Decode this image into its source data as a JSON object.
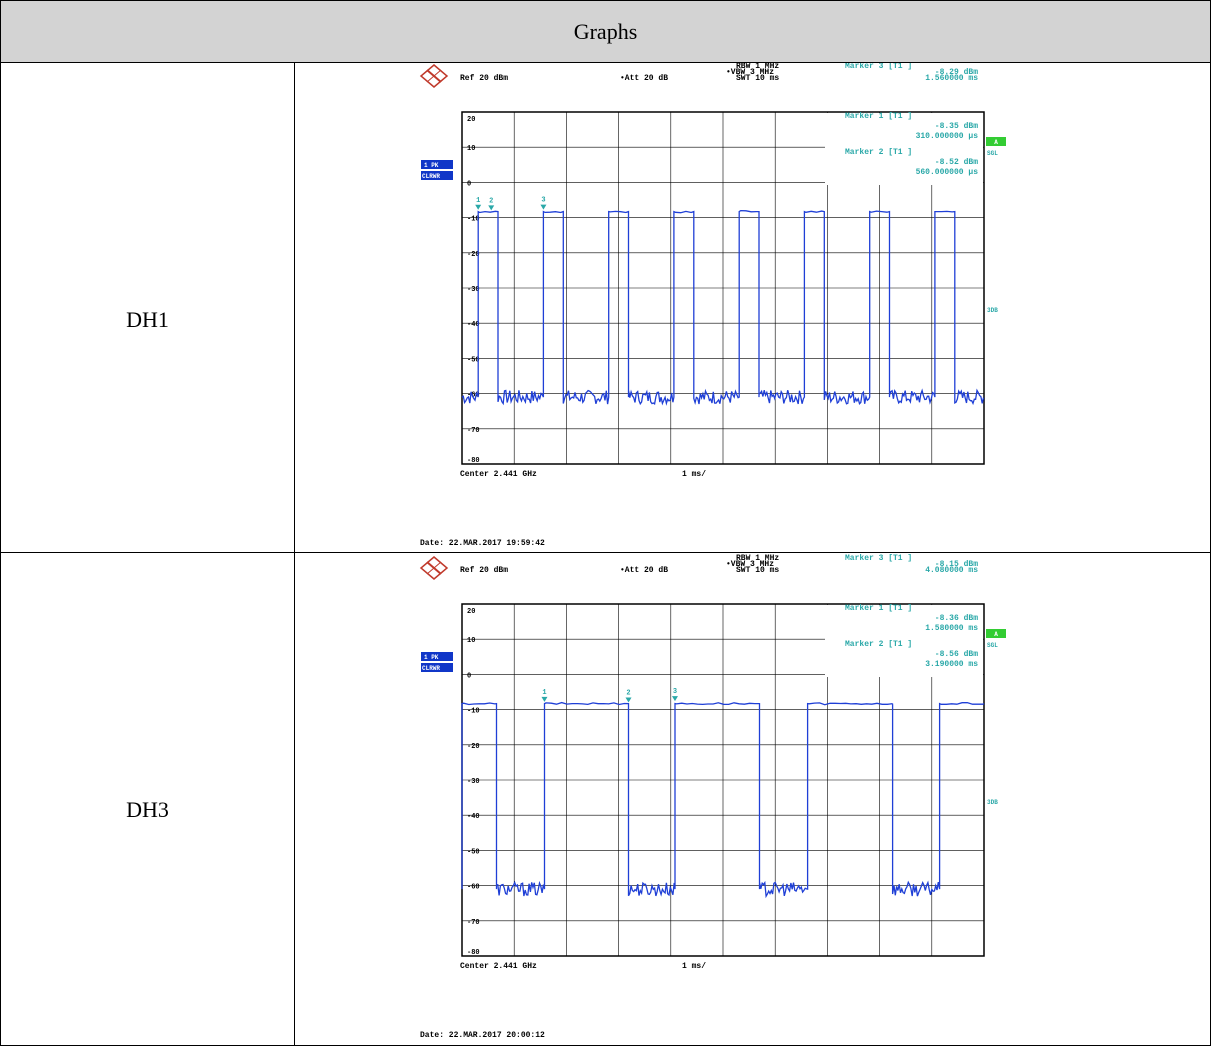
{
  "header": {
    "title": "Graphs"
  },
  "colors": {
    "trace": "#1f3fd6",
    "annotation": "#2aa8a8",
    "badge": "#1036c8",
    "sgl_badge": "#33cc33",
    "header_bg": "#d3d3d3"
  },
  "rows": [
    {
      "label": "DH1",
      "instrument": {
        "logo": "R&S logo",
        "ref": "Ref  20 dBm",
        "att": "Att  20 dB",
        "rbw": "RBW  1 MHz",
        "vbw": "VBW  3 MHz",
        "swt": "SWT  10 ms",
        "marker_top": {
          "title": "Marker 3 [T1 ]",
          "level": "-8.29 dBm",
          "time": "1.560000 ms"
        },
        "marker_b": {
          "title": "Marker 1 [T1 ]",
          "level": "-8.35 dBm",
          "time": "310.000000 µs"
        },
        "marker_c": {
          "title": "Marker 2 [T1 ]",
          "level": "-8.52 dBm",
          "time": "560.000000 µs"
        },
        "trace_badge_1": "1 PK",
        "trace_badge_2": "CLRWR",
        "badge_a": "A",
        "sgl": "SGL",
        "side_3db": "3DB",
        "center": "Center 2.441 GHz",
        "span": "1 ms/",
        "date": "Date: 22.MAR.2017  19:59:42",
        "marker_labels": [
          "1",
          "2",
          "3"
        ]
      },
      "chart_data": {
        "type": "line",
        "xlabel": "",
        "ylabel": "",
        "x_range_ms": [
          0,
          10
        ],
        "ylim": [
          -80,
          20
        ],
        "y_ticks": [
          20,
          10,
          0,
          -10,
          -20,
          -30,
          -40,
          -50,
          -60,
          -70,
          -80
        ],
        "grid": true,
        "high_level_dbm": -8.3,
        "noise_floor_dbm": -61,
        "pulse_width_ms": 0.38,
        "pulse_starts_ms": [
          0.31,
          1.56,
          2.81,
          4.06,
          5.31,
          6.56,
          7.81,
          9.06
        ],
        "markers": [
          {
            "name": "1",
            "x_ms": 0.31,
            "level_dbm": -8.35
          },
          {
            "name": "2",
            "x_ms": 0.56,
            "level_dbm": -8.52
          },
          {
            "name": "3",
            "x_ms": 1.56,
            "level_dbm": -8.29
          }
        ]
      }
    },
    {
      "label": "DH3",
      "instrument": {
        "logo": "R&S logo",
        "ref": "Ref  20 dBm",
        "att": "Att  20 dB",
        "rbw": "RBW  1 MHz",
        "vbw": "VBW  3 MHz",
        "swt": "SWT  10 ms",
        "marker_top": {
          "title": "Marker 3 [T1 ]",
          "level": "-8.15 dBm",
          "time": "4.080000 ms"
        },
        "marker_b": {
          "title": "Marker 1 [T1 ]",
          "level": "-8.36 dBm",
          "time": "1.580000 ms"
        },
        "marker_c": {
          "title": "Marker 2 [T1 ]",
          "level": "-8.56 dBm",
          "time": "3.190000 ms"
        },
        "trace_badge_1": "1 PK",
        "trace_badge_2": "CLRWR",
        "badge_a": "A",
        "sgl": "SGL",
        "side_3db": "3DB",
        "center": "Center 2.441 GHz",
        "span": "1 ms/",
        "date": "Date: 22.MAR.2017  20:00:12",
        "marker_labels": [
          "1",
          "2",
          "3"
        ]
      },
      "chart_data": {
        "type": "line",
        "xlabel": "",
        "ylabel": "",
        "x_range_ms": [
          0,
          10
        ],
        "ylim": [
          -80,
          20
        ],
        "y_ticks": [
          20,
          10,
          0,
          -10,
          -20,
          -30,
          -40,
          -50,
          -60,
          -70,
          -80
        ],
        "grid": true,
        "high_level_dbm": -8.3,
        "noise_floor_dbm": -61,
        "high_intervals_ms": [
          [
            0,
            0.66
          ],
          [
            1.58,
            3.19
          ],
          [
            4.08,
            5.7
          ],
          [
            6.62,
            8.25
          ],
          [
            9.15,
            10
          ]
        ],
        "markers": [
          {
            "name": "1",
            "x_ms": 1.58,
            "level_dbm": -8.36
          },
          {
            "name": "2",
            "x_ms": 3.19,
            "level_dbm": -8.56
          },
          {
            "name": "3",
            "x_ms": 4.08,
            "level_dbm": -8.15
          }
        ]
      }
    }
  ]
}
